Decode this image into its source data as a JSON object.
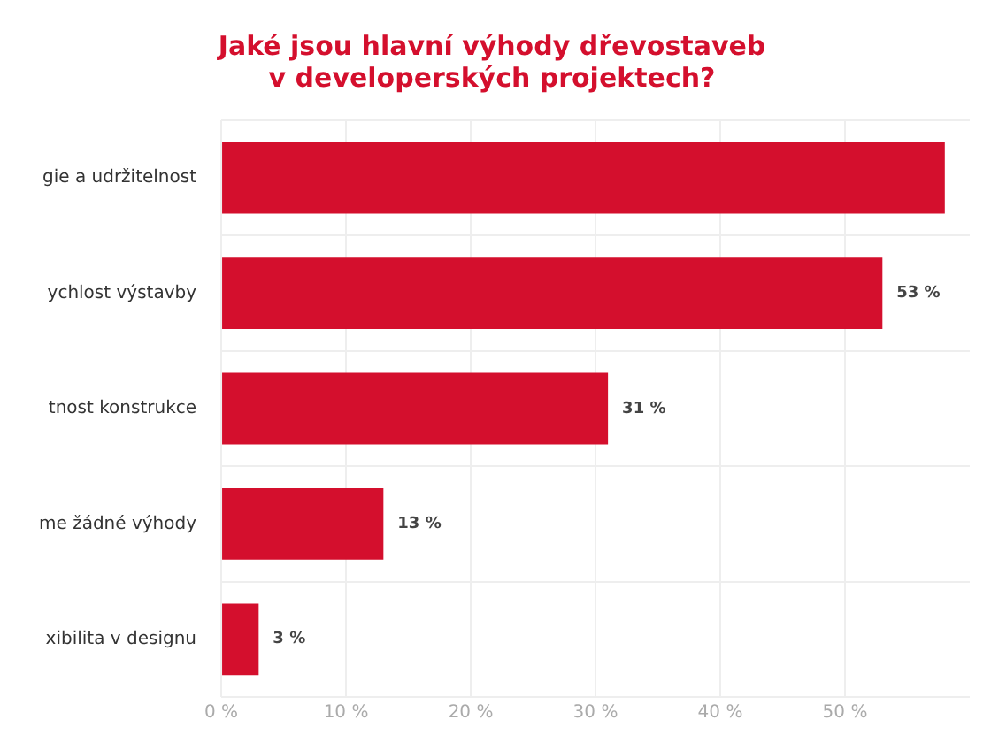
{
  "chart_data": {
    "type": "bar",
    "orientation": "horizontal",
    "title": "Jaké jsou hlavní výhody dřevostaveb\nv developerských projektech?",
    "categories": [
      "gie a udržitelnost",
      "ychlost výstavby",
      "tnost konstrukce",
      "me žádné výhody",
      "xibilita v designu"
    ],
    "values": [
      58,
      53,
      31,
      13,
      3
    ],
    "color": "#d40f2d",
    "value_labels": [
      null,
      "53 %",
      "31 %",
      "13 %",
      "3 %"
    ],
    "xlim": [
      0,
      60
    ],
    "xticks": [
      {
        "value": 0,
        "label": "0 %"
      },
      {
        "value": 10,
        "label": "10 %"
      },
      {
        "value": 20,
        "label": "20 %"
      },
      {
        "value": 30,
        "label": "30 %"
      },
      {
        "value": 40,
        "label": "40 %"
      },
      {
        "value": 50,
        "label": "50 %"
      }
    ],
    "grid": true,
    "legend": false
  }
}
